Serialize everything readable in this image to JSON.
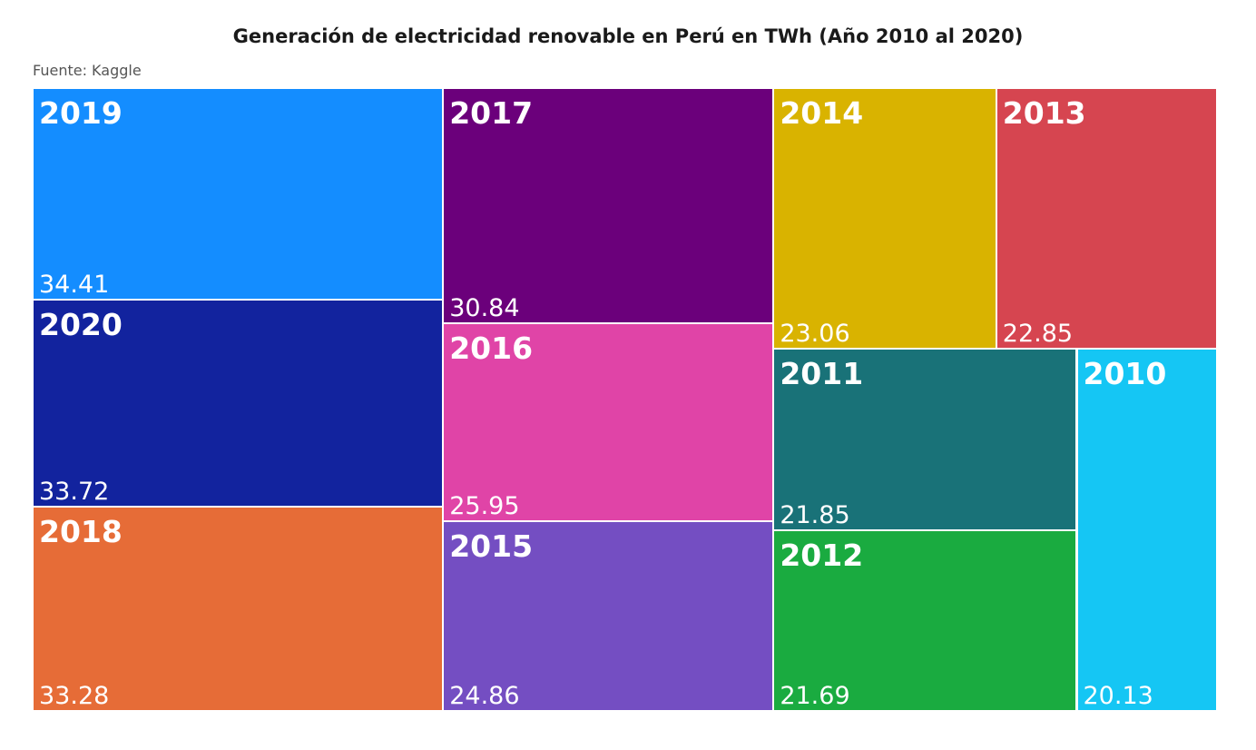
{
  "chart_data": {
    "type": "treemap",
    "title": "Generación de electricidad renovable en Perú en TWh (Año 2010 al 2020)",
    "subtitle": "Fuente: Kaggle",
    "tiles": [
      {
        "year": "2019",
        "value": 34.41,
        "label": "34.41",
        "color": "#148DFF"
      },
      {
        "year": "2020",
        "value": 33.72,
        "label": "33.72",
        "color": "#12239E"
      },
      {
        "year": "2018",
        "value": 33.28,
        "label": "33.28",
        "color": "#E66C37"
      },
      {
        "year": "2017",
        "value": 30.84,
        "label": "30.84",
        "color": "#6B007B"
      },
      {
        "year": "2016",
        "value": 25.95,
        "label": "25.95",
        "color": "#E044A7"
      },
      {
        "year": "2015",
        "value": 24.86,
        "label": "24.86",
        "color": "#744EC2"
      },
      {
        "year": "2014",
        "value": 23.06,
        "label": "23.06",
        "color": "#D9B300"
      },
      {
        "year": "2013",
        "value": 22.85,
        "label": "22.85",
        "color": "#D64550"
      },
      {
        "year": "2011",
        "value": 21.85,
        "label": "21.85",
        "color": "#197278"
      },
      {
        "year": "2012",
        "value": 21.69,
        "label": "21.69",
        "color": "#1AAB40"
      },
      {
        "year": "2010",
        "value": 20.13,
        "label": "20.13",
        "color": "#15C6F4"
      }
    ]
  }
}
